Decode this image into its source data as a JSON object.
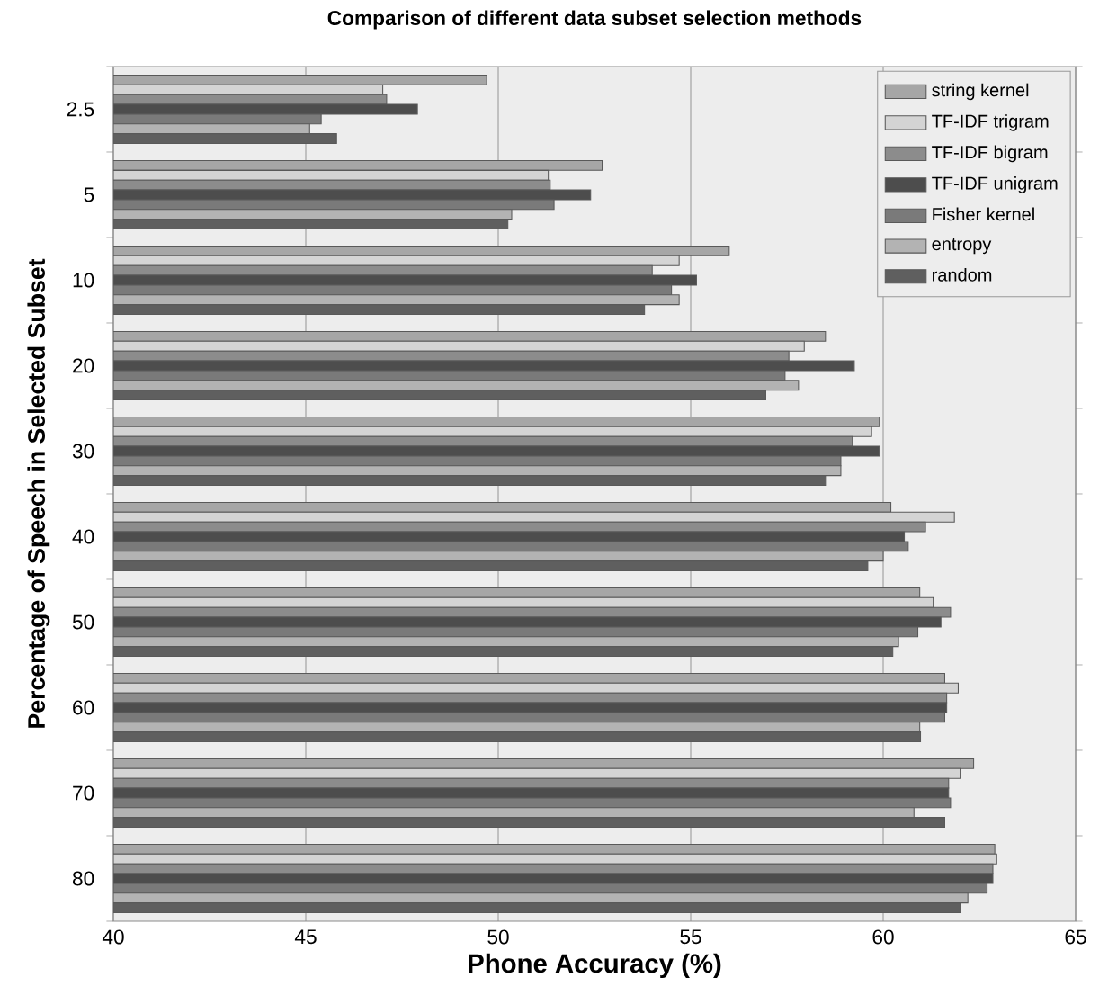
{
  "chart_data": {
    "type": "bar",
    "orientation": "horizontal",
    "title": "Comparison of different data subset selection methods",
    "xlabel": "Phone Accuracy (%)",
    "ylabel": "Percentage of Speech in Selected Subset",
    "categories": [
      "2.5",
      "5",
      "10",
      "20",
      "30",
      "40",
      "50",
      "60",
      "70",
      "80"
    ],
    "series": [
      {
        "name": "string kernel",
        "color": "#a6a6a6",
        "values": [
          49.7,
          52.7,
          56.0,
          58.5,
          59.9,
          60.2,
          60.95,
          61.6,
          62.35,
          62.9
        ]
      },
      {
        "name": "TF-IDF trigram",
        "color": "#d4d4d4",
        "values": [
          47.0,
          51.3,
          54.7,
          57.95,
          59.7,
          61.85,
          61.3,
          61.95,
          62.0,
          62.95
        ]
      },
      {
        "name": "TF-IDF bigram",
        "color": "#8c8c8c",
        "values": [
          47.1,
          51.35,
          54.0,
          57.55,
          59.2,
          61.1,
          61.75,
          61.65,
          61.7,
          62.85
        ]
      },
      {
        "name": "TF-IDF unigram",
        "color": "#4d4d4d",
        "values": [
          47.9,
          52.4,
          55.15,
          59.25,
          59.9,
          60.55,
          61.5,
          61.65,
          61.7,
          62.85
        ]
      },
      {
        "name": "Fisher kernel",
        "color": "#7a7a7a",
        "values": [
          45.4,
          51.45,
          54.5,
          57.45,
          58.9,
          60.65,
          60.9,
          61.6,
          61.75,
          62.7
        ]
      },
      {
        "name": "entropy",
        "color": "#b3b3b3",
        "values": [
          45.1,
          50.35,
          54.7,
          57.8,
          58.9,
          60.0,
          60.4,
          60.95,
          60.8,
          62.2
        ]
      },
      {
        "name": "random",
        "color": "#5f5f5f",
        "values": [
          45.8,
          50.25,
          53.8,
          56.95,
          58.5,
          59.6,
          60.25,
          60.97,
          61.6,
          62.0
        ]
      }
    ],
    "xlim": [
      40,
      65
    ],
    "xticks": [
      40,
      45,
      50,
      55,
      60,
      65
    ],
    "grid": "x",
    "legend": "top right"
  }
}
